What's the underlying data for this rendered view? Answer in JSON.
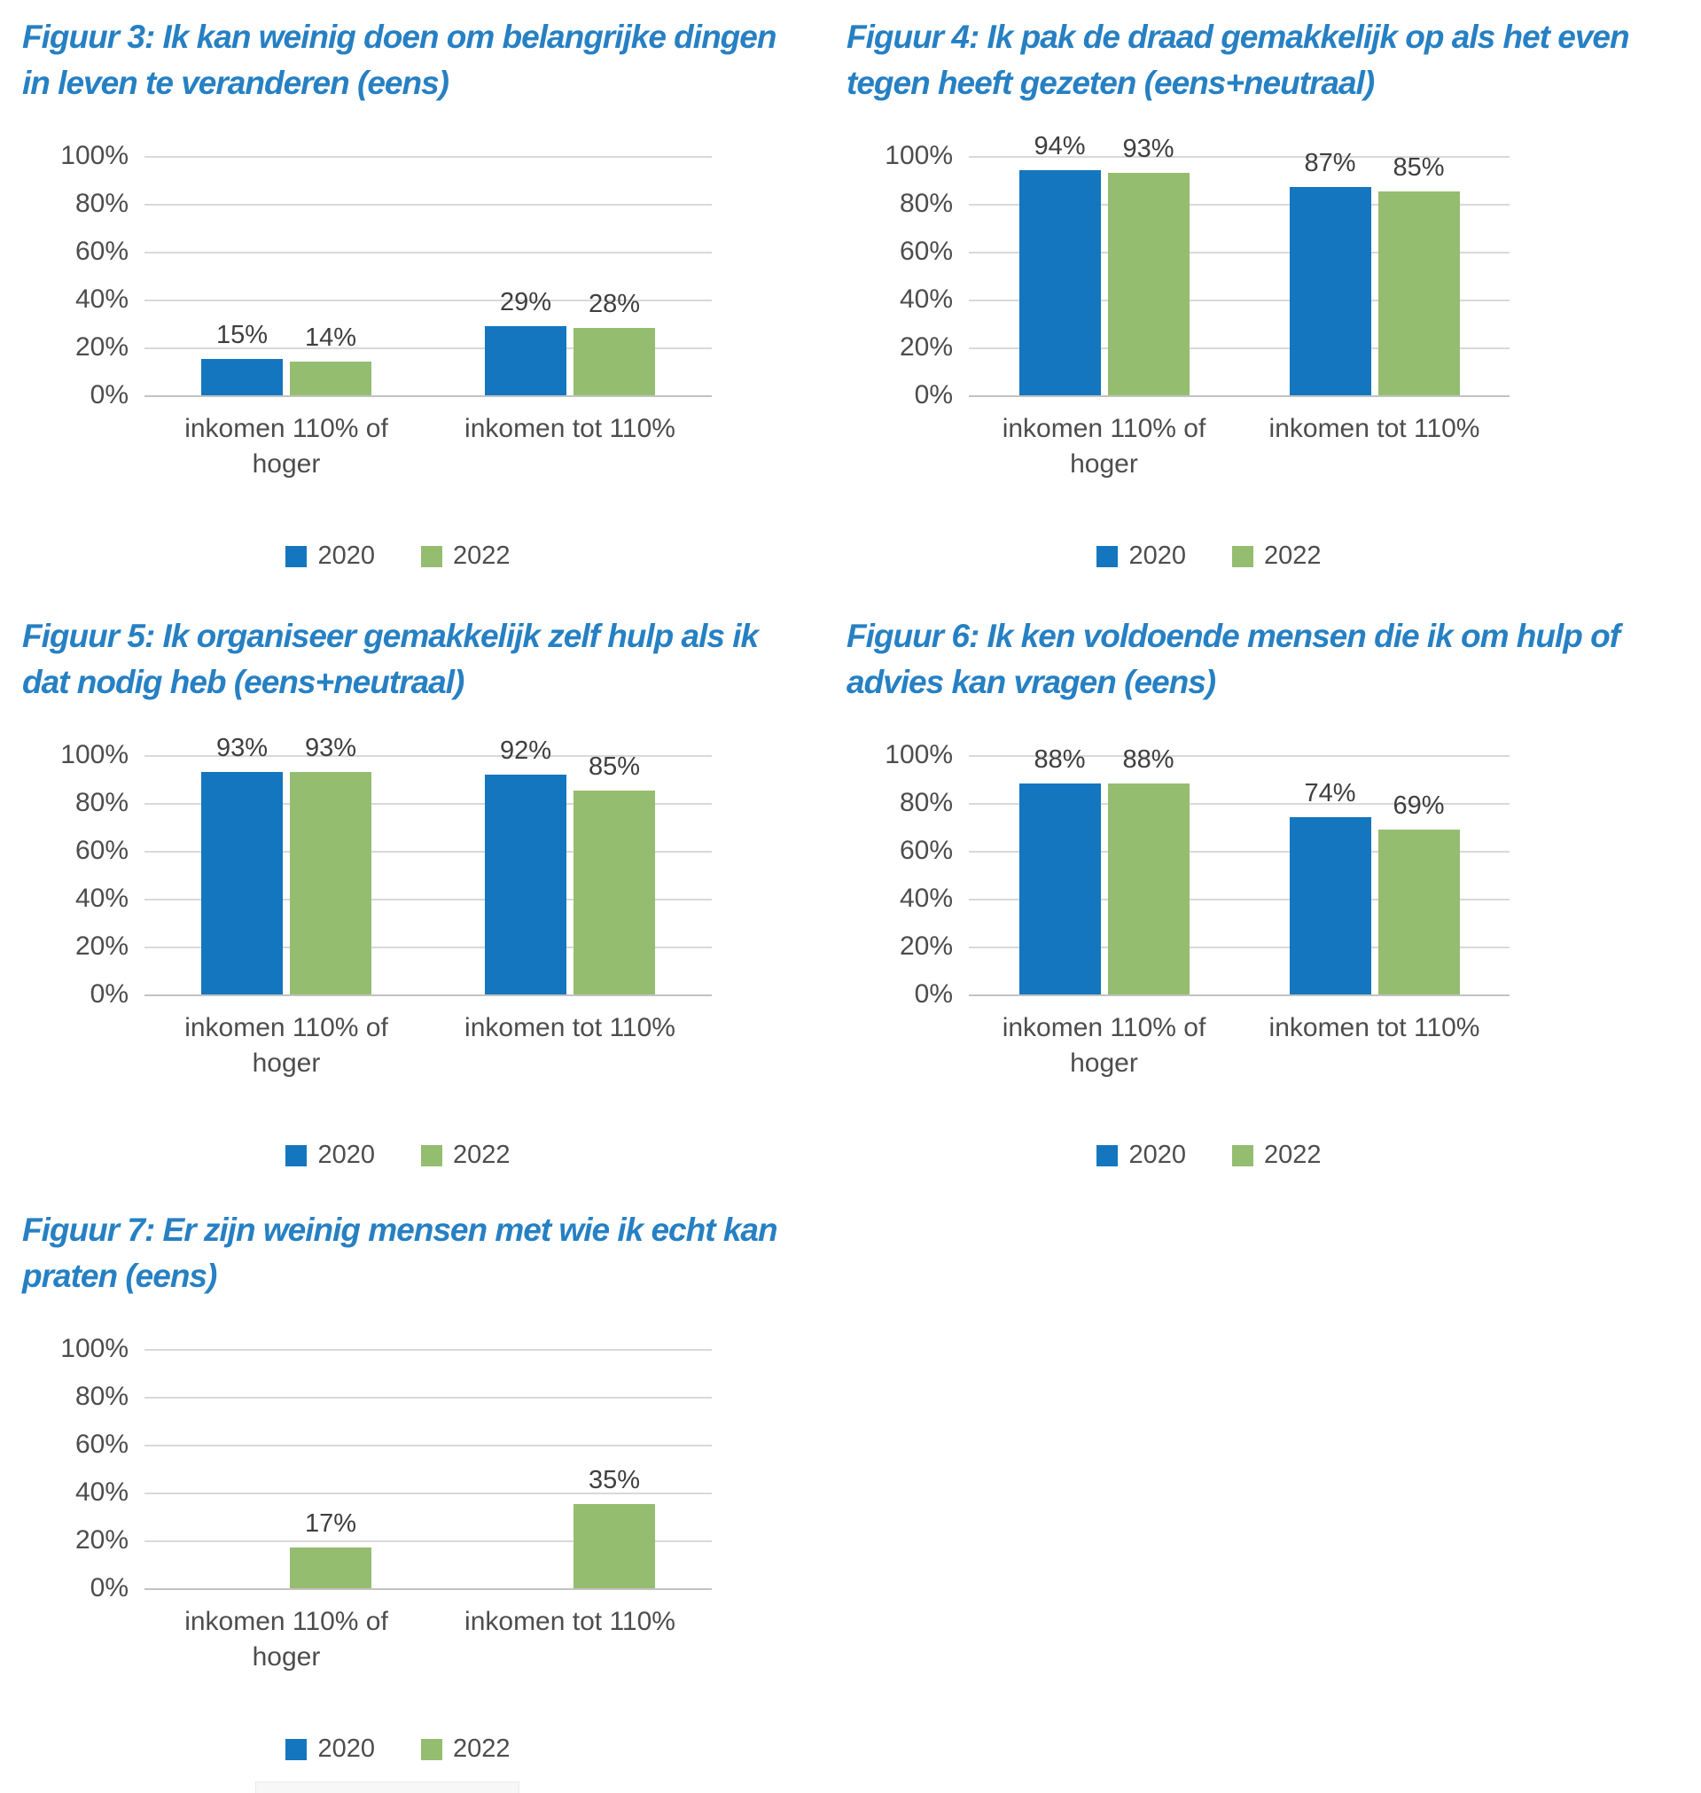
{
  "page": {
    "background": "#ffffff"
  },
  "colors": {
    "series_2020": "#1476BE",
    "series_2022": "#95BD6F",
    "title_blue": "#2680C3",
    "tick_text": "#4D4D4D",
    "value_text": "#3F3F3F",
    "gridline": "#D9D9D9",
    "axis_line": "#C2C2C2"
  },
  "legend": {
    "items": [
      {
        "label": "2020",
        "color": "#1476BE"
      },
      {
        "label": "2022",
        "color": "#95BD6F"
      }
    ]
  },
  "axis": {
    "categories": [
      "inkomen 110% of hoger",
      "inkomen tot 110%"
    ],
    "y_ticks_top_down": [
      "100%",
      "80%",
      "60%",
      "40%",
      "20%",
      "0%"
    ]
  },
  "chart_data": [
    {
      "type": "bar",
      "title": "Figuur 3: Ik kan weinig doen om belangrijke dingen in leven te veranderen (eens)",
      "title_lines": [
        "Figuur 3: Ik kan weinig doen om belangrijke dingen",
        "in leven te veranderen (eens)"
      ],
      "categories": [
        "inkomen 110% of hoger",
        "inkomen tot 110%"
      ],
      "series": [
        {
          "name": "2020",
          "values": [
            15,
            29
          ],
          "labels": [
            "15%",
            "29%"
          ]
        },
        {
          "name": "2022",
          "values": [
            14,
            28
          ],
          "labels": [
            "14%",
            "28%"
          ]
        }
      ],
      "xlabel": "",
      "ylabel": "",
      "ylim": [
        0,
        100
      ],
      "y_ticks": [
        "0%",
        "20%",
        "40%",
        "60%",
        "80%",
        "100%"
      ],
      "grid": true,
      "legend_position": "bottom"
    },
    {
      "type": "bar",
      "title": "Figuur 4: Ik pak de draad gemakkelijk op als het even tegen heeft gezeten (eens+neutraal)",
      "title_lines": [
        "Figuur 4: Ik pak de draad gemakkelijk op als het even",
        "tegen heeft gezeten (eens+neutraal)"
      ],
      "categories": [
        "inkomen 110% of hoger",
        "inkomen tot 110%"
      ],
      "series": [
        {
          "name": "2020",
          "values": [
            94,
            87
          ],
          "labels": [
            "94%",
            "87%"
          ]
        },
        {
          "name": "2022",
          "values": [
            93,
            85
          ],
          "labels": [
            "93%",
            "85%"
          ]
        }
      ],
      "xlabel": "",
      "ylabel": "",
      "ylim": [
        0,
        100
      ],
      "y_ticks": [
        "0%",
        "20%",
        "40%",
        "60%",
        "80%",
        "100%"
      ],
      "grid": true,
      "legend_position": "bottom"
    },
    {
      "type": "bar",
      "title": "Figuur 5: Ik organiseer gemakkelijk zelf hulp als ik dat nodig heb (eens+neutraal)",
      "title_lines": [
        "Figuur 5: Ik organiseer gemakkelijk zelf hulp als ik",
        "dat nodig heb (eens+neutraal)"
      ],
      "categories": [
        "inkomen 110% of hoger",
        "inkomen tot 110%"
      ],
      "series": [
        {
          "name": "2020",
          "values": [
            93,
            92
          ],
          "labels": [
            "93%",
            "92%"
          ]
        },
        {
          "name": "2022",
          "values": [
            93,
            85
          ],
          "labels": [
            "93%",
            "85%"
          ]
        }
      ],
      "xlabel": "",
      "ylabel": "",
      "ylim": [
        0,
        100
      ],
      "y_ticks": [
        "0%",
        "20%",
        "40%",
        "60%",
        "80%",
        "100%"
      ],
      "grid": true,
      "legend_position": "bottom"
    },
    {
      "type": "bar",
      "title": "Figuur 6: Ik ken voldoende mensen die ik om hulp of advies kan vragen (eens)",
      "title_lines": [
        "Figuur 6: Ik ken voldoende mensen die ik om hulp of",
        "advies kan vragen (eens)"
      ],
      "categories": [
        "inkomen 110% of hoger",
        "inkomen tot 110%"
      ],
      "series": [
        {
          "name": "2020",
          "values": [
            88,
            74
          ],
          "labels": [
            "88%",
            "74%"
          ]
        },
        {
          "name": "2022",
          "values": [
            88,
            69
          ],
          "labels": [
            "88%",
            "69%"
          ]
        }
      ],
      "xlabel": "",
      "ylabel": "",
      "ylim": [
        0,
        100
      ],
      "y_ticks": [
        "0%",
        "20%",
        "40%",
        "60%",
        "80%",
        "100%"
      ],
      "grid": true,
      "legend_position": "bottom"
    },
    {
      "type": "bar",
      "title": "Figuur 7: Er zijn weinig mensen met wie ik echt kan praten (eens)",
      "title_lines": [
        "Figuur 7: Er zijn weinig mensen met wie ik echt kan",
        "praten (eens)"
      ],
      "categories": [
        "inkomen 110% of hoger",
        "inkomen tot 110%"
      ],
      "series": [
        {
          "name": "2020",
          "values": [
            null,
            null
          ],
          "labels": [
            null,
            null
          ]
        },
        {
          "name": "2022",
          "values": [
            17,
            35
          ],
          "labels": [
            "17%",
            "35%"
          ]
        }
      ],
      "xlabel": "",
      "ylabel": "",
      "ylim": [
        0,
        100
      ],
      "y_ticks": [
        "0%",
        "20%",
        "40%",
        "60%",
        "80%",
        "100%"
      ],
      "grid": true,
      "legend_position": "bottom"
    }
  ]
}
